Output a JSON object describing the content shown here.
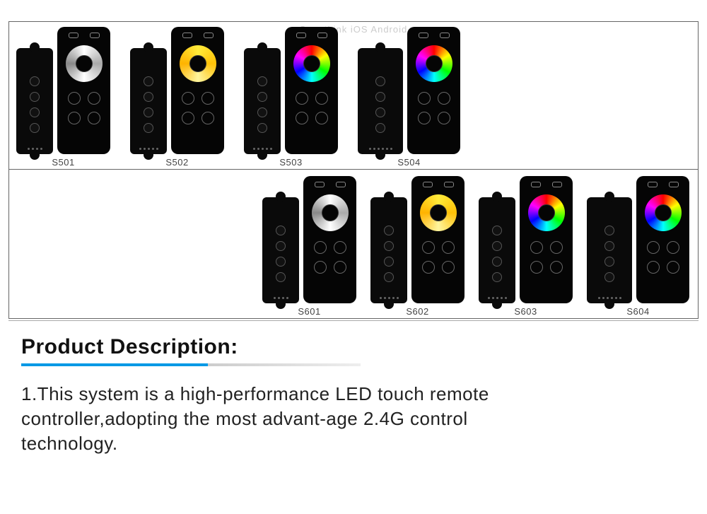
{
  "top_faded": "SmartLink    iOS Android",
  "row1": [
    {
      "label": "S501",
      "ring": "white",
      "ctrl_pins": 4,
      "ctrl_wide": false
    },
    {
      "label": "S502",
      "ring": "yellow",
      "ctrl_pins": 5,
      "ctrl_wide": false
    },
    {
      "label": "S503",
      "ring": "rgb",
      "ctrl_pins": 5,
      "ctrl_wide": false
    },
    {
      "label": "S504",
      "ring": "rgb",
      "ctrl_pins": 6,
      "ctrl_wide": true
    }
  ],
  "row2": [
    {
      "label": "S601",
      "ring": "white",
      "ctrl_pins": 4,
      "ctrl_wide": false
    },
    {
      "label": "S602",
      "ring": "yellow",
      "ctrl_pins": 5,
      "ctrl_wide": false
    },
    {
      "label": "S603",
      "ring": "rgb",
      "ctrl_pins": 5,
      "ctrl_wide": false
    },
    {
      "label": "S604",
      "ring": "rgb",
      "ctrl_pins": 6,
      "ctrl_wide": true
    }
  ],
  "description": {
    "heading": "Product Description:",
    "body": "1.This system is a high-performance LED touch remote controller,adopting the most advant-age 2.4G control technology.",
    "underline_color_primary": "#0099e5"
  },
  "colors": {
    "device_body": "#0a0a0a",
    "remote_body": "#050505",
    "border": "#666666",
    "text": "#222222"
  }
}
